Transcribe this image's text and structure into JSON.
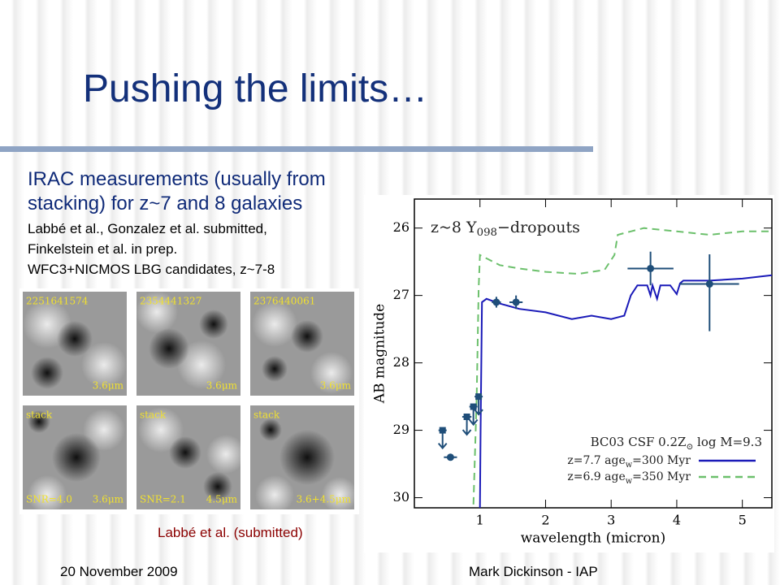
{
  "slide": {
    "title": "Pushing the limits…",
    "bullet": "IRAC measurements (usually from stacking) for z~7 and 8 galaxies",
    "sub_bullets": [
      "Labbé et al., Gonzalez et al. submitted,",
      "Finkelstein et al. in prep.",
      "WFC3+NICMOS LBG candidates, z~7-8"
    ],
    "stamps": [
      {
        "id": "2251641574",
        "left": "",
        "band": "3.6μm"
      },
      {
        "id": "2354441327",
        "left": "",
        "band": "3.6μm"
      },
      {
        "id": "2376440061",
        "left": "",
        "band": "3.6μm"
      },
      {
        "id": "stack",
        "left": "SNR=4.0",
        "band": "3.6μm"
      },
      {
        "id": "stack",
        "left": "SNR=2.1",
        "band": "4.5μm"
      },
      {
        "id": "stack",
        "left": "",
        "band": "3.6+4.5μm"
      }
    ],
    "caption": "Labbé et al. (submitted)",
    "footer_left": "20 November 2009",
    "footer_right": "Mark Dickinson - IAP"
  },
  "chart_data": {
    "type": "line",
    "annotation": [
      "z~8 Y",
      "098",
      "−dropouts"
    ],
    "legend_title": [
      "BC03 CSF 0.2Z",
      "⊙",
      " log M=9.3"
    ],
    "legend": "lower right",
    "x_label": "wavelength (micron)",
    "y_label": "AB magnitude",
    "xlim": [
      0,
      5.45
    ],
    "xticks": [
      1,
      2,
      3,
      4,
      5
    ],
    "ylim": [
      30.15,
      25.57
    ],
    "yticks": [
      26,
      27,
      28,
      29,
      30
    ],
    "series": [
      {
        "name": [
          "z=7.7 age",
          "w",
          "=300 Myr"
        ],
        "color": "#1a1ab8",
        "dash": false,
        "x": [
          1.0,
          1.01,
          1.03,
          1.1,
          1.3,
          1.6,
          2.0,
          2.4,
          2.7,
          3.0,
          3.2,
          3.3,
          3.4,
          3.55,
          3.6,
          3.63,
          3.7,
          3.75,
          3.9,
          4.0,
          4.05,
          4.1,
          4.5,
          5.0,
          5.45
        ],
        "values": [
          30.15,
          29.0,
          27.1,
          27.05,
          27.12,
          27.2,
          27.25,
          27.35,
          27.3,
          27.35,
          27.3,
          27.0,
          26.85,
          26.85,
          27.0,
          26.85,
          27.05,
          26.85,
          26.85,
          26.98,
          26.82,
          26.78,
          26.78,
          26.75,
          26.7
        ]
      },
      {
        "name": [
          "z=6.9 age",
          "w",
          "=350 Myr"
        ],
        "color": "#6cc06c",
        "dash": true,
        "x": [
          0.9,
          0.95,
          0.98,
          1.0,
          1.1,
          1.3,
          1.6,
          2.0,
          2.5,
          2.9,
          3.05,
          3.1,
          3.3,
          3.5,
          4.0,
          4.5,
          5.0,
          5.45
        ],
        "values": [
          30.1,
          28.5,
          26.9,
          26.4,
          26.45,
          26.55,
          26.6,
          26.65,
          26.68,
          26.62,
          26.4,
          26.1,
          26.05,
          26.0,
          26.05,
          26.1,
          26.05,
          26.05
        ]
      }
    ],
    "points": {
      "color": "#1f4e79",
      "x": [
        1.25,
        1.55,
        3.6,
        4.5,
        0.55
      ],
      "values": [
        27.1,
        27.1,
        26.6,
        26.83,
        29.4
      ],
      "xerr": [
        0.07,
        0.1,
        0.35,
        0.45,
        0.1
      ],
      "yerr_minus": [
        0.08,
        0.1,
        0.25,
        0.44,
        0.05
      ],
      "yerr_plus": [
        0.08,
        0.1,
        0.25,
        0.7,
        0.05
      ]
    },
    "upper_limits": {
      "color": "#1f4e79",
      "x": [
        0.43,
        0.8,
        0.9,
        0.98
      ],
      "values": [
        29.0,
        28.8,
        28.65,
        28.5
      ],
      "xerr": [
        0.0,
        0.07,
        0.0,
        0.0
      ]
    }
  }
}
